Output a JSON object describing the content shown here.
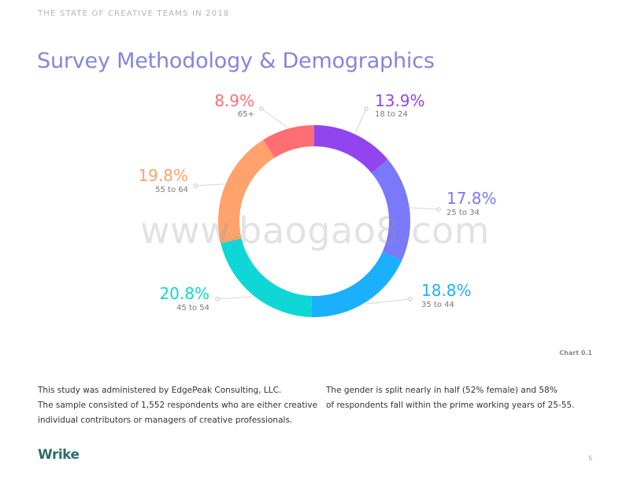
{
  "header": {
    "kicker": "THE STATE OF CREATIVE TEAMS IN 2018"
  },
  "page_title": "Survey Methodology & Demographics",
  "watermark": "www.baogao8.com",
  "chart_id": "Chart 0.1",
  "chart_data": {
    "type": "pie",
    "donut": true,
    "categories": [
      "18 to 24",
      "25 to 34",
      "35 to 44",
      "45 to 54",
      "55 to 64",
      "65+"
    ],
    "values": [
      13.9,
      17.8,
      18.8,
      20.8,
      19.8,
      8.9
    ],
    "value_labels": [
      "13.9%",
      "17.8%",
      "18.8%",
      "20.8%",
      "19.8%",
      "8.9%"
    ],
    "colors": [
      "#9245ef",
      "#7a78fb",
      "#1ab0fe",
      "#0fd7d5",
      "#ffa26c",
      "#ff6e72"
    ]
  },
  "body": {
    "left": [
      "This study was administered by EdgePeak Consulting, LLC.",
      "The sample consisted of 1,552 respondents who are either creative",
      "individual contributors or managers of creative professionals."
    ],
    "right": [
      "The gender is split nearly in half (52% female) and 58%",
      "of respondents fall within the prime working years of 25-55."
    ]
  },
  "footer": {
    "brand": "Wrike",
    "page_number": "5"
  }
}
